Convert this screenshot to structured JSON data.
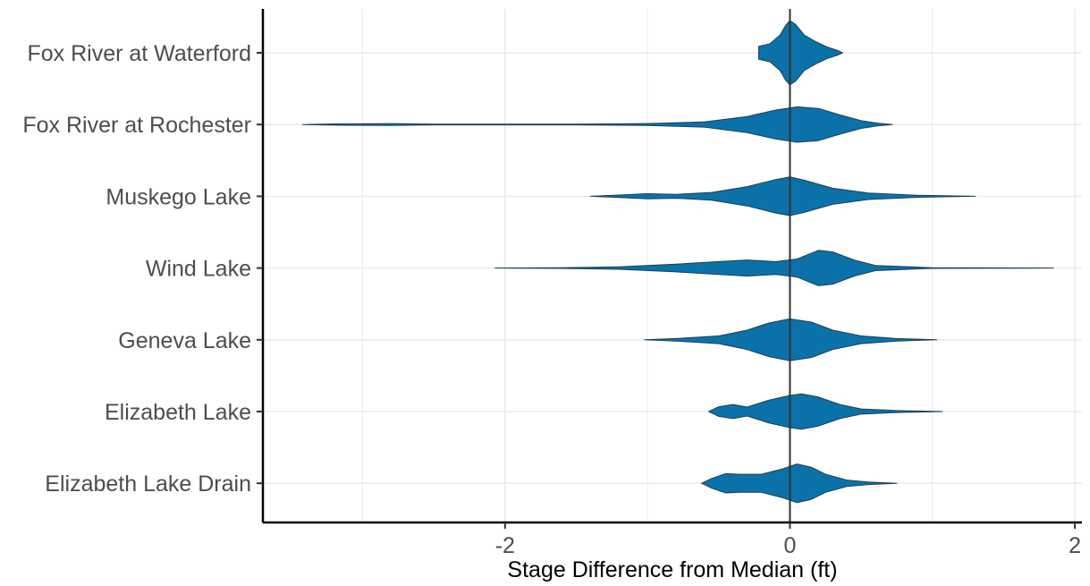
{
  "chart_data": {
    "type": "violin",
    "orientation": "horizontal",
    "title": "",
    "xlabel": "Stage Difference from Median (ft)",
    "ylabel": "",
    "xlim": [
      -3.7,
      2.05
    ],
    "xticks": [
      -2,
      0,
      2
    ],
    "xtick_labels": [
      "-2",
      "0",
      "2"
    ],
    "grid": true,
    "reference_line_x": 0,
    "fill_color": "#0a72a8",
    "outline_color": "#1f3f55",
    "categories": [
      "Fox River at Waterford",
      "Fox River at Rochester",
      "Muskego Lake",
      "Wind Lake",
      "Geneva Lake",
      "Elizabeth Lake",
      "Elizabeth Lake Drain"
    ],
    "series": [
      {
        "category": "Fox River at Waterford",
        "range": [
          -0.22,
          0.37
        ],
        "density": [
          [
            -0.22,
            0.2
          ],
          [
            -0.14,
            0.28
          ],
          [
            -0.07,
            0.55
          ],
          [
            -0.03,
            0.85
          ],
          [
            0.0,
            1.0
          ],
          [
            0.04,
            0.88
          ],
          [
            0.1,
            0.55
          ],
          [
            0.18,
            0.35
          ],
          [
            0.26,
            0.18
          ],
          [
            0.33,
            0.08
          ],
          [
            0.37,
            0.0
          ]
        ]
      },
      {
        "category": "Fox River at Rochester",
        "range": [
          -3.42,
          0.72
        ],
        "density": [
          [
            -3.42,
            0.0
          ],
          [
            -3.2,
            0.02
          ],
          [
            -2.8,
            0.03
          ],
          [
            -2.5,
            0.01
          ],
          [
            -1.5,
            0.01
          ],
          [
            -1.0,
            0.03
          ],
          [
            -0.6,
            0.08
          ],
          [
            -0.3,
            0.25
          ],
          [
            -0.1,
            0.45
          ],
          [
            0.05,
            0.55
          ],
          [
            0.2,
            0.5
          ],
          [
            0.35,
            0.3
          ],
          [
            0.5,
            0.12
          ],
          [
            0.62,
            0.04
          ],
          [
            0.72,
            0.0
          ]
        ]
      },
      {
        "category": "Muskego Lake",
        "range": [
          -1.4,
          1.3
        ],
        "density": [
          [
            -1.4,
            0.0
          ],
          [
            -1.2,
            0.04
          ],
          [
            -1.0,
            0.08
          ],
          [
            -0.8,
            0.06
          ],
          [
            -0.55,
            0.12
          ],
          [
            -0.3,
            0.3
          ],
          [
            -0.1,
            0.52
          ],
          [
            0.0,
            0.6
          ],
          [
            0.1,
            0.5
          ],
          [
            0.3,
            0.25
          ],
          [
            0.55,
            0.1
          ],
          [
            0.9,
            0.03
          ],
          [
            1.3,
            0.0
          ]
        ]
      },
      {
        "category": "Wind Lake",
        "range": [
          -2.07,
          1.85
        ],
        "density": [
          [
            -2.07,
            0.0
          ],
          [
            -1.6,
            0.01
          ],
          [
            -1.2,
            0.04
          ],
          [
            -0.8,
            0.12
          ],
          [
            -0.5,
            0.2
          ],
          [
            -0.3,
            0.25
          ],
          [
            -0.1,
            0.2
          ],
          [
            0.05,
            0.28
          ],
          [
            0.2,
            0.55
          ],
          [
            0.3,
            0.5
          ],
          [
            0.45,
            0.25
          ],
          [
            0.6,
            0.08
          ],
          [
            1.0,
            0.01
          ],
          [
            1.85,
            0.0
          ]
        ]
      },
      {
        "category": "Geneva Lake",
        "range": [
          -1.02,
          1.03
        ],
        "density": [
          [
            -1.02,
            0.0
          ],
          [
            -0.8,
            0.04
          ],
          [
            -0.5,
            0.12
          ],
          [
            -0.3,
            0.3
          ],
          [
            -0.15,
            0.52
          ],
          [
            0.0,
            0.65
          ],
          [
            0.15,
            0.55
          ],
          [
            0.3,
            0.3
          ],
          [
            0.5,
            0.12
          ],
          [
            0.75,
            0.04
          ],
          [
            1.03,
            0.0
          ]
        ]
      },
      {
        "category": "Elizabeth Lake",
        "range": [
          -0.57,
          1.07
        ],
        "density": [
          [
            -0.57,
            0.0
          ],
          [
            -0.5,
            0.15
          ],
          [
            -0.4,
            0.22
          ],
          [
            -0.3,
            0.14
          ],
          [
            -0.15,
            0.35
          ],
          [
            0.0,
            0.5
          ],
          [
            0.08,
            0.55
          ],
          [
            0.2,
            0.45
          ],
          [
            0.35,
            0.22
          ],
          [
            0.5,
            0.08
          ],
          [
            0.75,
            0.03
          ],
          [
            1.07,
            0.0
          ]
        ]
      },
      {
        "category": "Elizabeth Lake Drain",
        "range": [
          -0.62,
          0.75
        ],
        "density": [
          [
            -0.62,
            0.0
          ],
          [
            -0.55,
            0.15
          ],
          [
            -0.45,
            0.3
          ],
          [
            -0.35,
            0.28
          ],
          [
            -0.2,
            0.28
          ],
          [
            -0.05,
            0.45
          ],
          [
            0.05,
            0.6
          ],
          [
            0.15,
            0.5
          ],
          [
            0.25,
            0.28
          ],
          [
            0.4,
            0.1
          ],
          [
            0.55,
            0.04
          ],
          [
            0.75,
            0.0
          ]
        ]
      }
    ]
  }
}
